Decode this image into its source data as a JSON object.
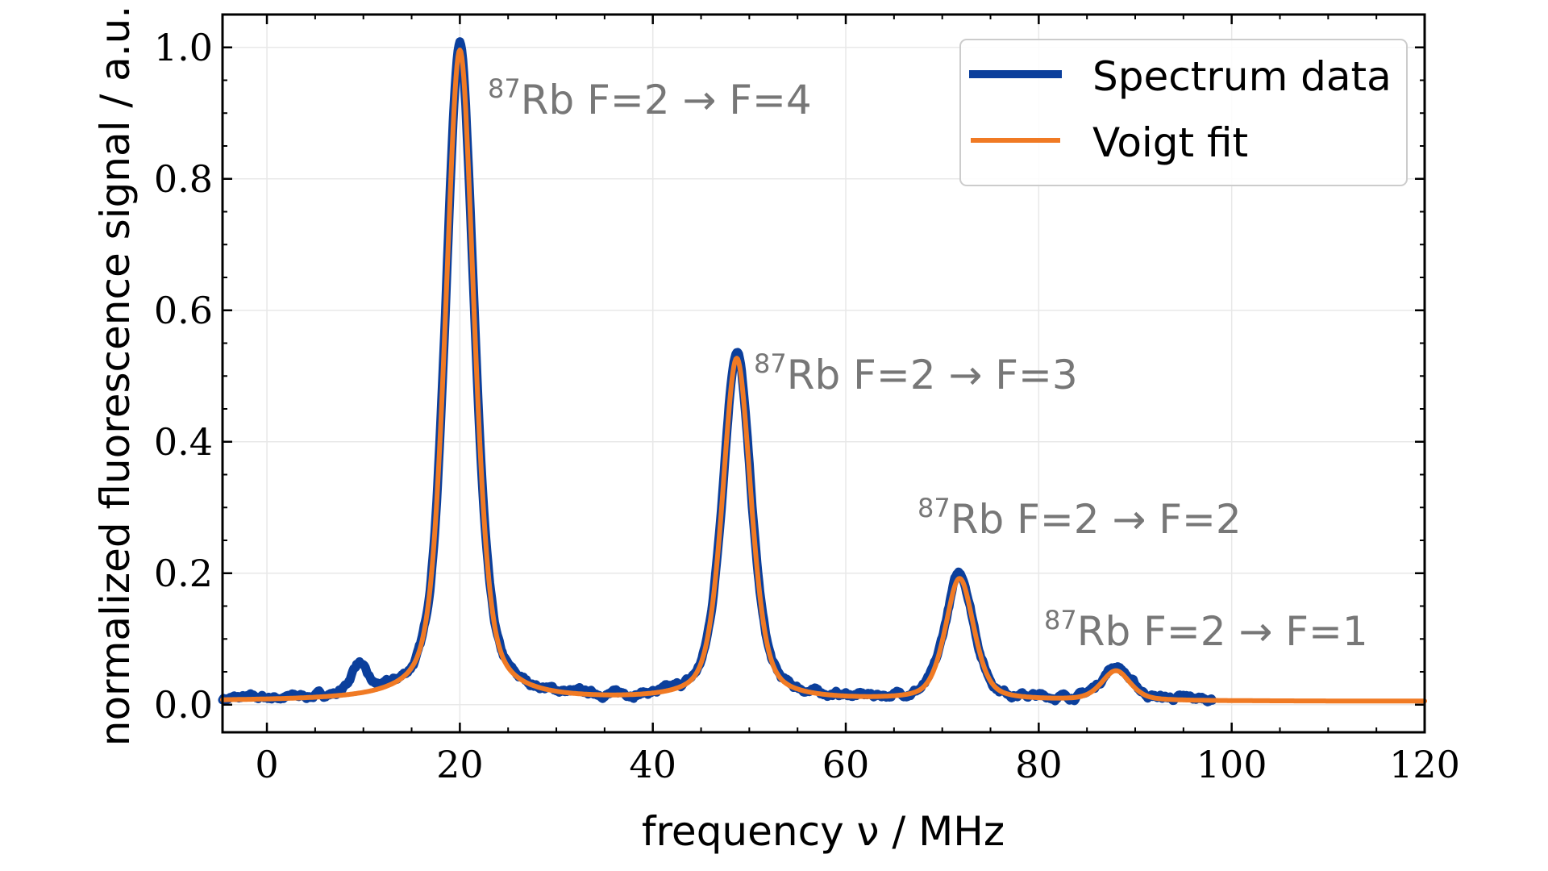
{
  "chart_data": {
    "type": "line",
    "xlabel": "frequency ν / MHz",
    "ylabel": "normalized fluorescence signal / a.u.",
    "xlim": [
      -4.6,
      120
    ],
    "ylim": [
      -0.042,
      1.05
    ],
    "xticks": [
      "0",
      "20",
      "40",
      "60",
      "80",
      "100",
      "120"
    ],
    "xtick_values": [
      0,
      20,
      40,
      60,
      80,
      100,
      120
    ],
    "yticks": [
      "0.0",
      "0.2",
      "0.4",
      "0.6",
      "0.8",
      "1.0"
    ],
    "ytick_values": [
      0,
      0.2,
      0.4,
      0.6,
      0.8,
      1.0
    ],
    "grid": true,
    "legend_position": "top-right",
    "series": [
      {
        "name": "Spectrum data",
        "color": "#0b3f9c",
        "x_range": [
          -4.6,
          98
        ],
        "peaks": [
          {
            "center": 9.5,
            "height": 0.045,
            "width": 0.9
          },
          {
            "center": 20.0,
            "height": 1.0,
            "width": 1.75
          },
          {
            "center": 48.7,
            "height": 0.53,
            "width": 1.75
          },
          {
            "center": 71.8,
            "height": 0.19,
            "width": 1.75
          },
          {
            "center": 88.0,
            "height": 0.05,
            "width": 1.75
          }
        ],
        "baseline": 0.007
      },
      {
        "name": "Voigt fit",
        "color": "#f07a24",
        "x_range": [
          -4.6,
          120
        ],
        "peaks": [
          {
            "center": 20.0,
            "height": 0.99,
            "width": 1.75
          },
          {
            "center": 48.7,
            "height": 0.52,
            "width": 1.75
          },
          {
            "center": 71.8,
            "height": 0.185,
            "width": 1.75
          },
          {
            "center": 88.0,
            "height": 0.045,
            "width": 1.75
          }
        ],
        "baseline": 0.005
      }
    ],
    "annotations": [
      {
        "sup": "87",
        "text": "Rb F=2 → F=4",
        "x": 20.0,
        "y": 0.99
      },
      {
        "sup": "87",
        "text": "Rb F=2 → F=3",
        "x": 48.7,
        "y": 0.52
      },
      {
        "sup": "87",
        "text": "Rb F=2 → F=2",
        "x": 71.8,
        "y": 0.185
      },
      {
        "sup": "87",
        "text": "Rb F=2 → F=1",
        "x": 88.0,
        "y": 0.045
      }
    ]
  }
}
